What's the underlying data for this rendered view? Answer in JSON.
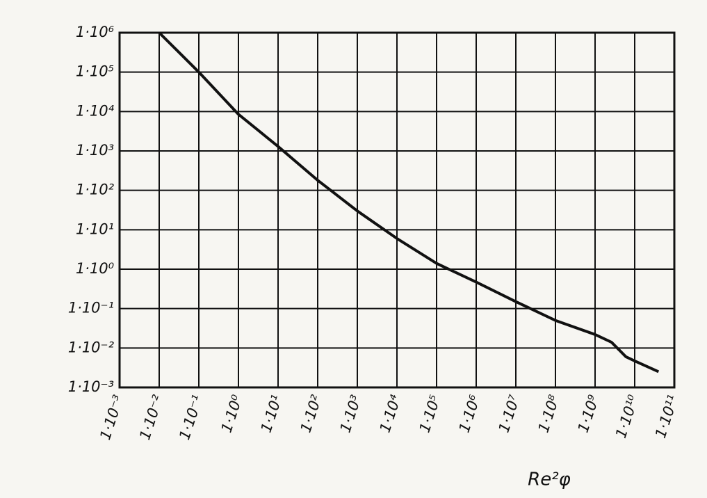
{
  "chart_data": {
    "type": "line",
    "x_label": "Re²φ",
    "xscale": "log",
    "yscale": "log",
    "grid": true,
    "xlim": [
      0.001,
      100000000000
    ],
    "ylim": [
      0.001,
      1000000
    ],
    "xticks": [
      {
        "value": 0.001,
        "label": "1·10⁻³"
      },
      {
        "value": 0.01,
        "label": "1·10⁻²"
      },
      {
        "value": 0.1,
        "label": "1·10⁻¹"
      },
      {
        "value": 1,
        "label": "1·10⁰"
      },
      {
        "value": 10,
        "label": "1·10¹"
      },
      {
        "value": 100,
        "label": "1·10²"
      },
      {
        "value": 1000,
        "label": "1·10³"
      },
      {
        "value": 10000,
        "label": "1·10⁴"
      },
      {
        "value": 100000,
        "label": "1·10⁵"
      },
      {
        "value": 1000000,
        "label": "1·10⁶"
      },
      {
        "value": 10000000,
        "label": "1·10⁷"
      },
      {
        "value": 100000000,
        "label": "1·10⁸"
      },
      {
        "value": 1000000000,
        "label": "1·10⁹"
      },
      {
        "value": 10000000000,
        "label": "1·10¹⁰"
      },
      {
        "value": 100000000000,
        "label": "1·10¹¹"
      }
    ],
    "yticks": [
      {
        "value": 1000000,
        "label": "1·10⁶"
      },
      {
        "value": 100000,
        "label": "1·10⁵"
      },
      {
        "value": 10000,
        "label": "1·10⁴"
      },
      {
        "value": 1000,
        "label": "1·10³"
      },
      {
        "value": 100,
        "label": "1·10²"
      },
      {
        "value": 10,
        "label": "1·10¹"
      },
      {
        "value": 1,
        "label": "1·10⁰"
      },
      {
        "value": 0.1,
        "label": "1·10⁻¹"
      },
      {
        "value": 0.01,
        "label": "1·10⁻²"
      },
      {
        "value": 0.001,
        "label": "1·10⁻³"
      }
    ],
    "x": [
      0.01,
      0.1,
      1,
      10,
      100,
      1000,
      10000,
      100000,
      1000000,
      10000000,
      100000000,
      1000000000,
      2600000000,
      6000000000,
      10000000000,
      40000000000
    ],
    "series": [
      {
        "color": "#111111",
        "values": [
          1000000,
          100000,
          8500,
          1300,
          180,
          30,
          6,
          1.4,
          0.47,
          0.15,
          0.05,
          0.022,
          0.014,
          0.006,
          0.0047,
          0.0025
        ]
      }
    ]
  }
}
